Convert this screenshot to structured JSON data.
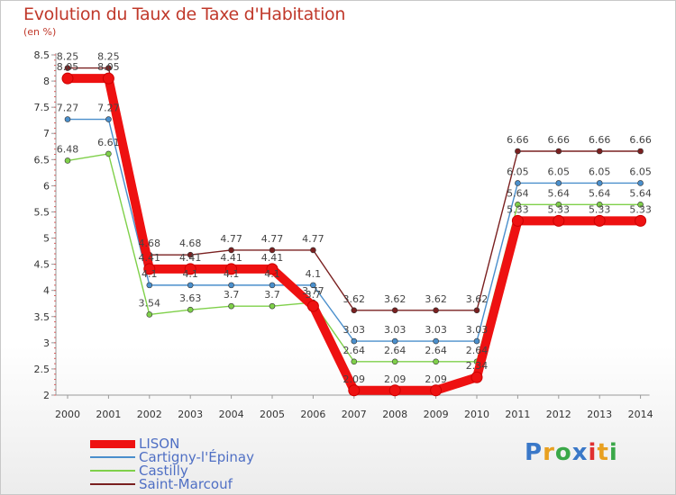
{
  "chart_data": {
    "type": "line",
    "title": "Evolution du Taux de Taxe d'Habitation",
    "ylabel": "(en %)",
    "xlabel": "",
    "categories": [
      "2000",
      "2001",
      "2002",
      "2003",
      "2004",
      "2005",
      "2006",
      "2007",
      "2008",
      "2009",
      "2010",
      "2011",
      "2012",
      "2013",
      "2014"
    ],
    "ylim": [
      2,
      8.5
    ],
    "yticks": [
      "2",
      "2.5",
      "3",
      "3.5",
      "4",
      "4.5",
      "5",
      "5.5",
      "6",
      "6.5",
      "7",
      "7.5",
      "8",
      "8.5"
    ],
    "grid": false,
    "legend_position": "bottom-left",
    "series": [
      {
        "name": "LISON",
        "color": "#ee1111",
        "values": [
          8.05,
          8.05,
          4.41,
          4.41,
          4.41,
          4.41,
          3.7,
          2.09,
          2.09,
          2.09,
          2.34,
          5.33,
          5.33,
          5.33,
          5.33
        ],
        "labels": [
          "8.05",
          "8.05",
          "4.41",
          "4.41",
          "4.41",
          "4.41",
          "3.7",
          "2.09",
          "2.09",
          "2.09",
          "2.34",
          "5.33",
          "5.33",
          "5.33",
          "5.33"
        ]
      },
      {
        "name": "Cartigny-l'Épinay",
        "color": "#4a8fcc",
        "values": [
          7.27,
          7.27,
          4.1,
          4.1,
          4.1,
          4.1,
          4.1,
          3.03,
          3.03,
          3.03,
          3.03,
          6.05,
          6.05,
          6.05,
          6.05
        ],
        "labels": [
          "7.27",
          "7.27",
          "4.1",
          "4.1",
          "4.1",
          "4.1",
          "4.1",
          "3.03",
          "3.03",
          "3.03",
          "3.03",
          "6.05",
          "6.05",
          "6.05",
          "6.05"
        ]
      },
      {
        "name": "Castilly",
        "color": "#7fd04a",
        "values": [
          6.48,
          6.61,
          3.54,
          3.63,
          3.7,
          3.7,
          3.77,
          2.64,
          2.64,
          2.64,
          2.64,
          5.64,
          5.64,
          5.64,
          5.64
        ],
        "labels": [
          "6.48",
          "6.61",
          "3.54",
          "3.63",
          "3.7",
          "3.7",
          "3.77",
          "2.64",
          "2.64",
          "2.64",
          "2.64",
          "5.64",
          "5.64",
          "5.64",
          "5.64"
        ]
      },
      {
        "name": "Saint-Marcouf",
        "color": "#7a2020",
        "values": [
          8.25,
          8.25,
          4.68,
          4.68,
          4.77,
          4.77,
          4.77,
          3.62,
          3.62,
          3.62,
          3.62,
          6.66,
          6.66,
          6.66,
          6.66
        ],
        "labels": [
          "8.25",
          "8.25",
          "4.68",
          "4.68",
          "4.77",
          "4.77",
          "4.77",
          "3.62",
          "3.62",
          "3.62",
          "3.62",
          "6.66",
          "6.66",
          "6.66",
          "6.66"
        ]
      }
    ]
  },
  "legend": {
    "items": [
      {
        "label": "LISON",
        "color": "#ee1111"
      },
      {
        "label": "Cartigny-l'Épinay",
        "color": "#4a8fcc"
      },
      {
        "label": "Castilly",
        "color": "#7fd04a"
      },
      {
        "label": "Saint-Marcouf",
        "color": "#7a2020"
      }
    ]
  },
  "logo": {
    "letters": [
      "P",
      "r",
      "o",
      "x",
      "i",
      "t",
      "i"
    ],
    "colors": [
      "#3a78c8",
      "#e8a020",
      "#3aa848",
      "#3a78c8",
      "#e03030",
      "#e8a020",
      "#3aa848"
    ]
  }
}
